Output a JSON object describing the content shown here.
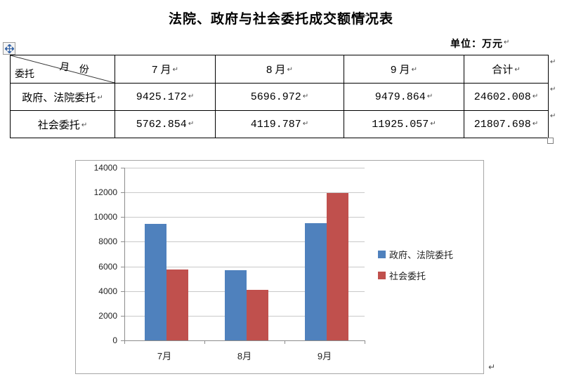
{
  "marks": {
    "paragraph": "↵"
  },
  "title": "法院、政府与社会委托成交额情况表",
  "unit_label": "单位：万元",
  "table": {
    "corner": {
      "top_label": "月　份",
      "bottom_label": "委托"
    },
    "months": [
      "7 月",
      "8 月",
      "9 月",
      "合计"
    ],
    "rows": [
      {
        "label": "政府、法院委托",
        "values": [
          "9425.172",
          "5696.972",
          "9479.864",
          "24602.008"
        ]
      },
      {
        "label": "社会委托",
        "values": [
          "5762.854",
          "4119.787",
          "11925.057",
          "21807.698"
        ]
      }
    ]
  },
  "chart_data": {
    "type": "bar",
    "title": "",
    "categories": [
      "7月",
      "8月",
      "9月"
    ],
    "series": [
      {
        "name": "政府、法院委托",
        "color": "#4F81BD",
        "values": [
          9425.172,
          5696.972,
          9479.864
        ]
      },
      {
        "name": "社会委托",
        "color": "#C0504D",
        "values": [
          5762.854,
          4119.787,
          11925.057
        ]
      }
    ],
    "xlabel": "",
    "ylabel": "",
    "ylim": [
      0,
      14000
    ],
    "ytick_step": 2000,
    "grid": true,
    "legend_position": "right"
  }
}
